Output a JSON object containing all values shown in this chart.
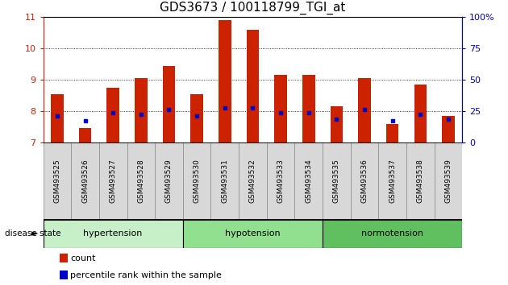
{
  "title": "GDS3673 / 100118799_TGI_at",
  "samples": [
    "GSM493525",
    "GSM493526",
    "GSM493527",
    "GSM493528",
    "GSM493529",
    "GSM493530",
    "GSM493531",
    "GSM493532",
    "GSM493533",
    "GSM493534",
    "GSM493535",
    "GSM493536",
    "GSM493537",
    "GSM493538",
    "GSM493539"
  ],
  "count_values": [
    8.55,
    7.45,
    8.75,
    9.05,
    9.45,
    8.55,
    10.9,
    10.6,
    9.15,
    9.15,
    8.15,
    9.05,
    7.6,
    8.85,
    7.85
  ],
  "percentile_values": [
    7.85,
    7.7,
    7.95,
    7.9,
    8.05,
    7.85,
    8.1,
    8.1,
    7.95,
    7.95,
    7.75,
    8.05,
    7.7,
    7.9,
    7.75
  ],
  "ymin": 7,
  "ymax": 11,
  "yticks": [
    7,
    8,
    9,
    10,
    11
  ],
  "right_yticks_vals": [
    0,
    25,
    50,
    75,
    100
  ],
  "right_yticks_labels": [
    "0",
    "25",
    "50",
    "75",
    "100%"
  ],
  "groups": [
    {
      "label": "hypertension",
      "start": 0,
      "end": 5
    },
    {
      "label": "hypotension",
      "start": 5,
      "end": 10
    },
    {
      "label": "normotension",
      "start": 10,
      "end": 15
    }
  ],
  "group_colors": [
    "#c8f0c8",
    "#90e090",
    "#60c060"
  ],
  "bar_color": "#cc2200",
  "percentile_color": "#0000cc",
  "bar_width": 0.45,
  "background_color": "#ffffff",
  "axis_color_left": "#cc2200",
  "axis_color_right": "#0000cc",
  "legend_count_label": "count",
  "legend_percentile_label": "percentile rank within the sample",
  "grid_yticks": [
    8,
    9,
    10
  ],
  "xtick_box_color": "#d8d8d8",
  "xtick_box_border": "#888888"
}
